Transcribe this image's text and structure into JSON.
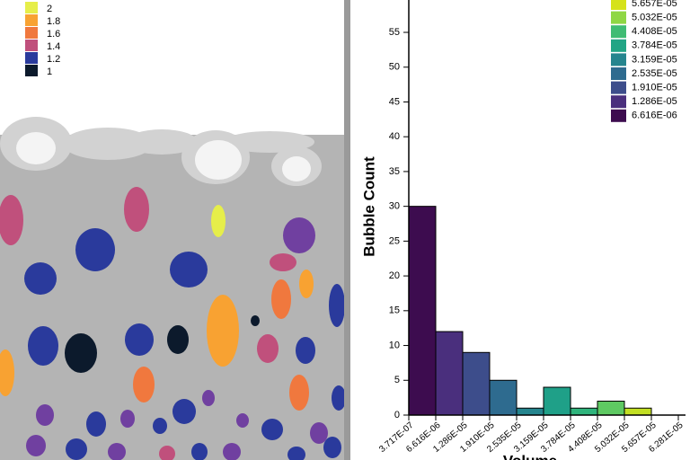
{
  "left_panel": {
    "legend": [
      {
        "label": "2",
        "color": "#e6ee4a"
      },
      {
        "label": "1.8",
        "color": "#f8a232"
      },
      {
        "label": "1.6",
        "color": "#f0783e"
      },
      {
        "label": "1.4",
        "color": "#c0507c"
      },
      {
        "label": "1.2",
        "color": "#2a3a9c"
      },
      {
        "label": "1",
        "color": "#0c1a2c"
      }
    ]
  },
  "chart_data": {
    "type": "histogram",
    "y_label": "Bubble Count",
    "x_label": "Volume",
    "bins": [
      3.717e-07,
      6.616e-06,
      1.286e-05,
      1.91e-05,
      2.535e-05,
      3.159e-05,
      3.784e-05,
      4.408e-05,
      5.032e-05,
      5.657e-05,
      6.281e-05
    ],
    "values": [
      30,
      12,
      9,
      5,
      1,
      4,
      1,
      2,
      1,
      0
    ],
    "colors": [
      "#3d0c4f",
      "#4a2f7d",
      "#3d4d8b",
      "#2e6b8f",
      "#25858e",
      "#1fa088",
      "#2fb47c",
      "#5ec962",
      "#c2df23",
      "#e8e419"
    ],
    "xlim": [
      3.717e-07,
      6.281e-05
    ],
    "ylim": [
      0,
      60
    ],
    "xticks": [
      {
        "value": 3.717e-07,
        "label": "3.717E-07"
      },
      {
        "value": 6.616e-06,
        "label": "6.616E-06"
      },
      {
        "value": 1.286e-05,
        "label": "1.286E-05"
      },
      {
        "value": 1.91e-05,
        "label": "1.910E-05"
      },
      {
        "value": 2.535e-05,
        "label": "2.535E-05"
      },
      {
        "value": 3.159e-05,
        "label": "3.159E-05"
      },
      {
        "value": 3.784e-05,
        "label": "3.784E-05"
      },
      {
        "value": 4.408e-05,
        "label": "4.408E-05"
      },
      {
        "value": 5.032e-05,
        "label": "5.032E-05"
      },
      {
        "value": 5.657e-05,
        "label": "5.657E-05"
      },
      {
        "value": 6.281e-05,
        "label": "6.281E-05"
      }
    ],
    "yticks": [
      0,
      5,
      10,
      15,
      20,
      25,
      30,
      35,
      40,
      45,
      50,
      55
    ],
    "legend": [
      {
        "label": "5.657E-05",
        "color": "#d5e21a"
      },
      {
        "label": "5.032E-05",
        "color": "#8fd744"
      },
      {
        "label": "4.408E-05",
        "color": "#3fbc73"
      },
      {
        "label": "3.784E-05",
        "color": "#21a585"
      },
      {
        "label": "3.159E-05",
        "color": "#25858e"
      },
      {
        "label": "2.535E-05",
        "color": "#2e6b8f"
      },
      {
        "label": "1.910E-05",
        "color": "#3d4d8b"
      },
      {
        "label": "1.286E-05",
        "color": "#4a2f7d"
      },
      {
        "label": "6.616E-06",
        "color": "#3d0c4f"
      }
    ]
  }
}
